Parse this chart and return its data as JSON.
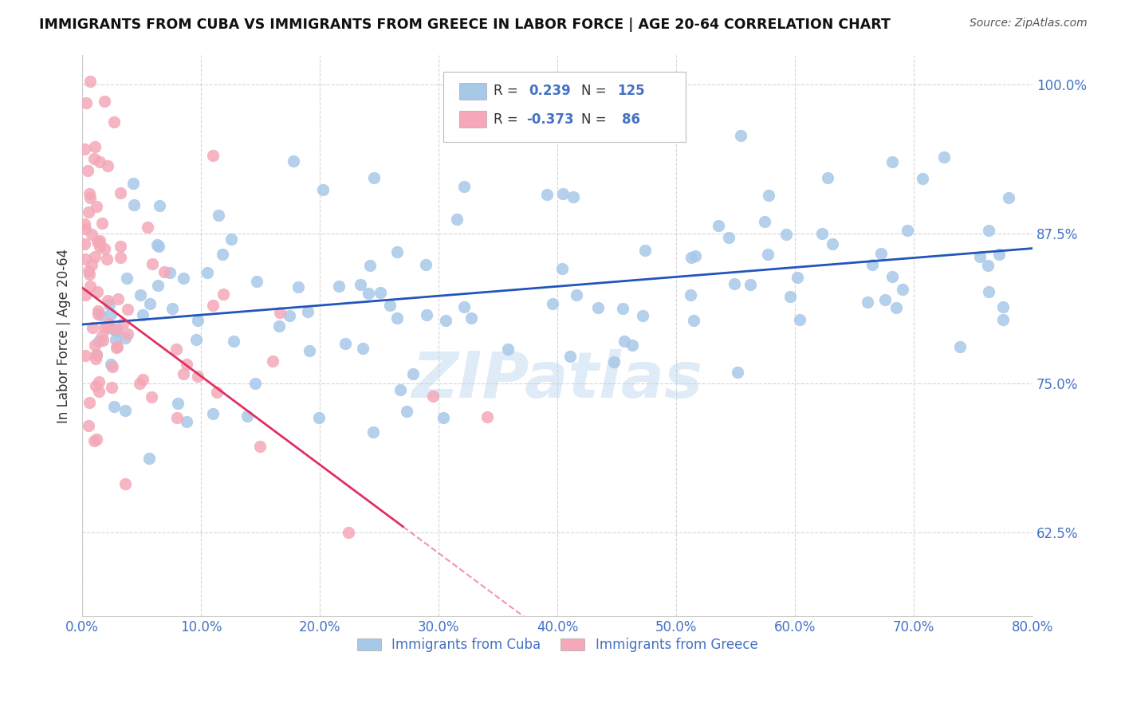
{
  "title": "IMMIGRANTS FROM CUBA VS IMMIGRANTS FROM GREECE IN LABOR FORCE | AGE 20-64 CORRELATION CHART",
  "source": "Source: ZipAtlas.com",
  "ylabel": "In Labor Force | Age 20-64",
  "xlim": [
    0.0,
    0.8
  ],
  "ylim": [
    0.555,
    1.025
  ],
  "yticks": [
    0.625,
    0.75,
    0.875,
    1.0
  ],
  "ytick_labels": [
    "62.5%",
    "75.0%",
    "87.5%",
    "100.0%"
  ],
  "xticks": [
    0.0,
    0.1,
    0.2,
    0.3,
    0.4,
    0.5,
    0.6,
    0.7,
    0.8
  ],
  "xtick_labels": [
    "0.0%",
    "10.0%",
    "20.0%",
    "30.0%",
    "40.0%",
    "50.0%",
    "60.0%",
    "70.0%",
    "80.0%"
  ],
  "cuba_color": "#a8c8e8",
  "greece_color": "#f4a8b8",
  "cuba_line_color": "#2255bb",
  "greece_line_color": "#e03060",
  "R_cuba": 0.239,
  "N_cuba": 125,
  "R_greece": -0.373,
  "N_greece": 86,
  "legend_label_cuba": "Immigrants from Cuba",
  "legend_label_greece": "Immigrants from Greece",
  "watermark": "ZIPatlas",
  "background_color": "#ffffff",
  "grid_color": "#bbbbbb",
  "tick_color": "#4472c4",
  "title_color": "#111111",
  "source_color": "#555555",
  "ylabel_color": "#333333"
}
